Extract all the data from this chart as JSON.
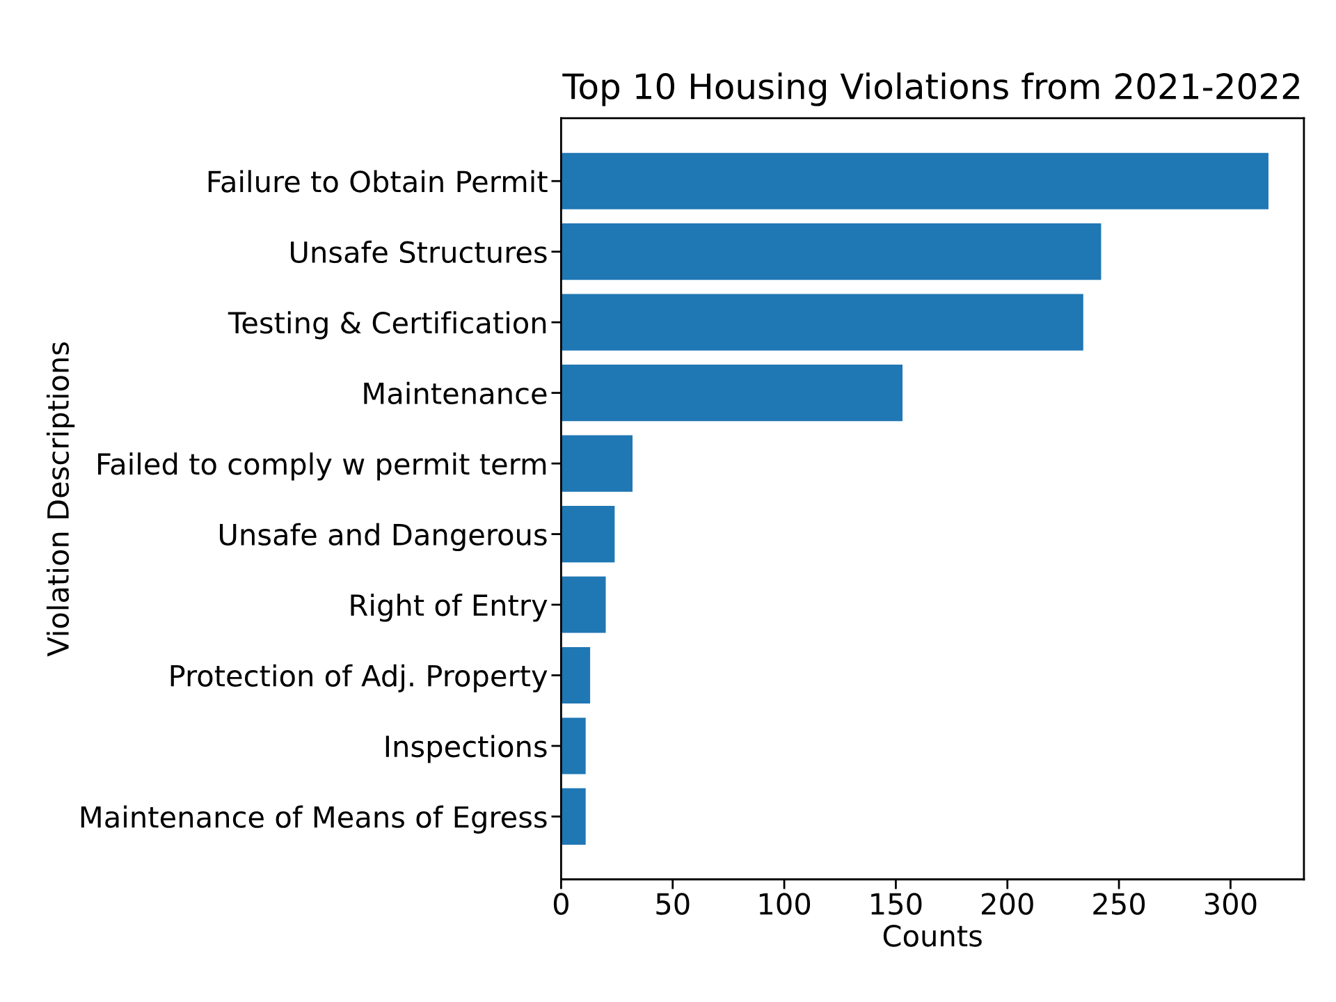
{
  "chart_data": {
    "type": "bar",
    "orientation": "horizontal",
    "title": "Top 10 Housing Violations from 2021-2022",
    "xlabel": "Counts",
    "ylabel": "Violation Descriptions",
    "categories": [
      "Failure to Obtain Permit",
      "Unsafe Structures",
      "Testing & Certification",
      "Maintenance",
      "Failed to comply w permit term",
      "Unsafe and Dangerous",
      "Right of Entry",
      "Protection of Adj. Property",
      "Inspections",
      "Maintenance of Means of Egress"
    ],
    "values": [
      317,
      242,
      234,
      153,
      32,
      24,
      20,
      13,
      11,
      11
    ],
    "color": "#1f77b4",
    "xlim": [
      0,
      332.9
    ],
    "xticks": [
      0,
      50,
      100,
      150,
      200,
      250,
      300
    ],
    "grid": false
  }
}
